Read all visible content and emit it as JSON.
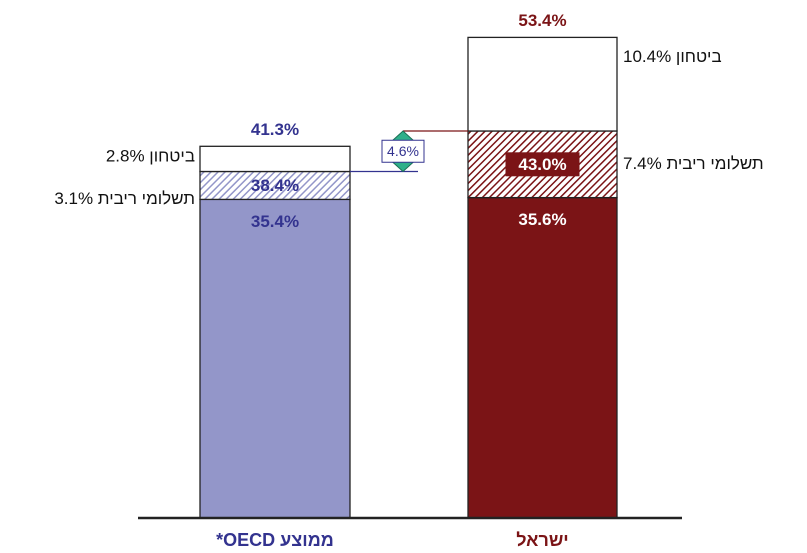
{
  "chart_data": {
    "type": "stacked_bar",
    "categories": [
      "ממוצע OECD*",
      "ישראל"
    ],
    "category_colors": [
      "#9396c9",
      "#7b1416"
    ],
    "label_colors": [
      "#33338f",
      "#7b1416"
    ],
    "series": [
      {
        "values": [
          35.4,
          35.6
        ],
        "value_labels": [
          "35.4%",
          "35.6%"
        ]
      },
      {
        "values": [
          3.1,
          7.4
        ],
        "value_labels": [
          "תשלומי ריבית 3.1%",
          "תשלומי ריבית 7.4%"
        ]
      },
      {
        "values": [
          2.8,
          10.4
        ],
        "value_labels": [
          "ביטחון 2.8%",
          "ביטחון 10.4%"
        ]
      }
    ],
    "subtotal_labels": [
      "38.4%",
      "43.0%"
    ],
    "total_labels": [
      "41.3%",
      "53.4%"
    ],
    "annotation": "4.6%",
    "ylim": [
      0,
      55
    ]
  }
}
